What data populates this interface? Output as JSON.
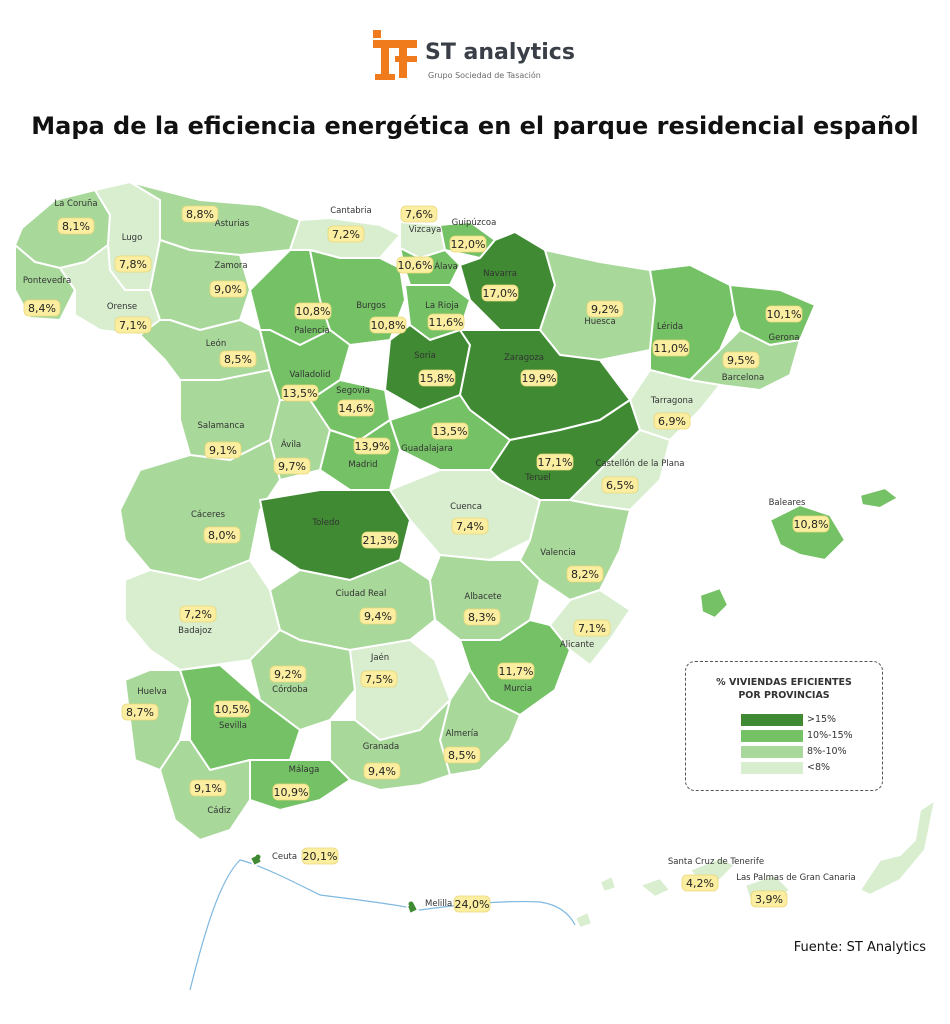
{
  "header": {
    "brand": "ST analytics",
    "subtitle": "Grupo Sociedad de Tasación",
    "title": "Mapa de la eficiencia energética en el parque residencial español"
  },
  "colors": {
    "band_gt15": "#3f8a33",
    "band_10_15": "#75c266",
    "band_8_10": "#a8d89a",
    "band_lt8": "#d8eecf",
    "badge": "#fbeea0",
    "accent": "#f07b1d"
  },
  "legend": {
    "title_line1": "% VIVIENDAS EFICIENTES",
    "title_line2": "POR PROVINCIAS",
    "items": [
      {
        "label": ">15%",
        "band": "gt15"
      },
      {
        "label": "10%-15%",
        "band": "10_15"
      },
      {
        "label": "8%-10%",
        "band": "8_10"
      },
      {
        "label": "<8%",
        "band": "lt8"
      }
    ]
  },
  "provinces": [
    {
      "name": "La Coruña",
      "value": "8,1%",
      "band": "8_10"
    },
    {
      "name": "Lugo",
      "value": "7,8%",
      "band": "lt8"
    },
    {
      "name": "Asturias",
      "value": "8,8%",
      "band": "8_10"
    },
    {
      "name": "Cantabria",
      "value": "7,2%",
      "band": "lt8"
    },
    {
      "name": "Vizcaya",
      "value": "7,6%",
      "band": "lt8"
    },
    {
      "name": "Guipúzcoa",
      "value": "12,0%",
      "band": "10_15"
    },
    {
      "name": "Pontevedra",
      "value": "8,4%",
      "band": "8_10"
    },
    {
      "name": "Orense",
      "value": "7,1%",
      "band": "lt8"
    },
    {
      "name": "Zamora",
      "value": "9,0%",
      "band": "8_10"
    },
    {
      "name": "León",
      "value": "8,5%",
      "band": "8_10"
    },
    {
      "name": "Palencia",
      "value": "10,8%",
      "band": "10_15"
    },
    {
      "name": "Burgos",
      "value": "10,8%",
      "band": "10_15"
    },
    {
      "name": "Álava",
      "value": "10,6%",
      "band": "10_15"
    },
    {
      "name": "La Rioja",
      "value": "11,6%",
      "band": "10_15"
    },
    {
      "name": "Navarra",
      "value": "17,0%",
      "band": "gt15"
    },
    {
      "name": "Huesca",
      "value": "9,2%",
      "band": "8_10"
    },
    {
      "name": "Lérida",
      "value": "11,0%",
      "band": "10_15"
    },
    {
      "name": "Gerona",
      "value": "10,1%",
      "band": "10_15"
    },
    {
      "name": "Barcelona",
      "value": "9,5%",
      "band": "8_10"
    },
    {
      "name": "Tarragona",
      "value": "6,9%",
      "band": "lt8"
    },
    {
      "name": "Valladolid",
      "value": "13,5%",
      "band": "10_15"
    },
    {
      "name": "Soria",
      "value": "15,8%",
      "band": "gt15"
    },
    {
      "name": "Zaragoza",
      "value": "19,9%",
      "band": "gt15"
    },
    {
      "name": "Salamanca",
      "value": "9,1%",
      "band": "8_10"
    },
    {
      "name": "Segovia",
      "value": "14,6%",
      "band": "10_15"
    },
    {
      "name": "Ávila",
      "value": "9,7%",
      "band": "8_10"
    },
    {
      "name": "Madrid",
      "value": "13,9%",
      "band": "10_15"
    },
    {
      "name": "Guadalajara",
      "value": "13,5%",
      "band": "10_15"
    },
    {
      "name": "Teruel",
      "value": "17,1%",
      "band": "gt15"
    },
    {
      "name": "Castellón de la Plana",
      "value": "6,5%",
      "band": "lt8"
    },
    {
      "name": "Cáceres",
      "value": "8,0%",
      "band": "8_10"
    },
    {
      "name": "Toledo",
      "value": "21,3%",
      "band": "gt15"
    },
    {
      "name": "Cuenca",
      "value": "7,4%",
      "band": "lt8"
    },
    {
      "name": "Valencia",
      "value": "8,2%",
      "band": "8_10"
    },
    {
      "name": "Baleares",
      "value": "10,8%",
      "band": "10_15"
    },
    {
      "name": "Badajoz",
      "value": "7,2%",
      "band": "lt8"
    },
    {
      "name": "Ciudad Real",
      "value": "9,4%",
      "band": "8_10"
    },
    {
      "name": "Albacete",
      "value": "8,3%",
      "band": "8_10"
    },
    {
      "name": "Alicante",
      "value": "7,1%",
      "band": "lt8"
    },
    {
      "name": "Córdoba",
      "value": "9,2%",
      "band": "8_10"
    },
    {
      "name": "Jaén",
      "value": "7,5%",
      "band": "lt8"
    },
    {
      "name": "Murcia",
      "value": "11,7%",
      "band": "10_15"
    },
    {
      "name": "Huelva",
      "value": "8,7%",
      "band": "8_10"
    },
    {
      "name": "Sevilla",
      "value": "10,5%",
      "band": "10_15"
    },
    {
      "name": "Almería",
      "value": "8,5%",
      "band": "8_10"
    },
    {
      "name": "Granada",
      "value": "9,4%",
      "band": "8_10"
    },
    {
      "name": "Málaga",
      "value": "10,9%",
      "band": "10_15"
    },
    {
      "name": "Cádiz",
      "value": "9,1%",
      "band": "8_10"
    },
    {
      "name": "Ceuta",
      "value": "20,1%",
      "band": "gt15"
    },
    {
      "name": "Melilla",
      "value": "24,0%",
      "band": "gt15"
    },
    {
      "name": "Santa Cruz de Tenerife",
      "value": "4,2%",
      "band": "lt8"
    },
    {
      "name": "Las Palmas de Gran Canaria",
      "value": "3,9%",
      "band": "lt8"
    }
  ],
  "source": "Fuente: ST Analytics"
}
